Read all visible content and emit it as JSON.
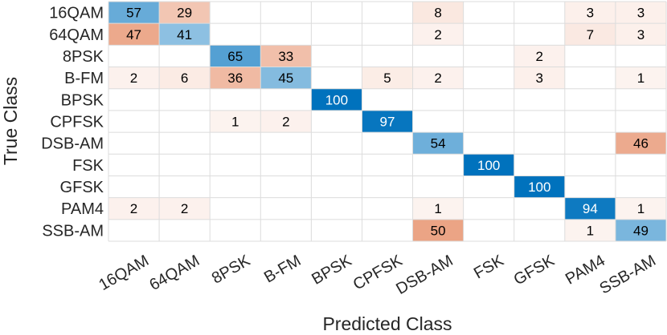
{
  "chart_data": {
    "type": "heatmap",
    "title": "",
    "xlabel": "Predicted Class",
    "ylabel": "True Class",
    "row_labels": [
      "16QAM",
      "64QAM",
      "8PSK",
      "B-FM",
      "BPSK",
      "CPFSK",
      "DSB-AM",
      "FSK",
      "GFSK",
      "PAM4",
      "SSB-AM"
    ],
    "col_labels": [
      "16QAM",
      "64QAM",
      "8PSK",
      "B-FM",
      "BPSK",
      "CPFSK",
      "DSB-AM",
      "FSK",
      "GFSK",
      "PAM4",
      "SSB-AM"
    ],
    "values": [
      [
        57,
        29,
        null,
        null,
        null,
        null,
        8,
        null,
        null,
        3,
        3
      ],
      [
        47,
        41,
        null,
        null,
        null,
        null,
        2,
        null,
        null,
        7,
        3
      ],
      [
        null,
        null,
        65,
        33,
        null,
        null,
        null,
        null,
        2,
        null,
        null
      ],
      [
        2,
        6,
        36,
        45,
        null,
        5,
        2,
        null,
        3,
        null,
        1
      ],
      [
        null,
        null,
        null,
        null,
        100,
        null,
        null,
        null,
        null,
        null,
        null
      ],
      [
        null,
        null,
        1,
        2,
        null,
        97,
        null,
        null,
        null,
        null,
        null
      ],
      [
        null,
        null,
        null,
        null,
        null,
        null,
        54,
        null,
        null,
        null,
        46
      ],
      [
        null,
        null,
        null,
        null,
        null,
        null,
        null,
        100,
        null,
        null,
        null
      ],
      [
        null,
        null,
        null,
        null,
        null,
        null,
        null,
        null,
        100,
        null,
        null
      ],
      [
        2,
        2,
        null,
        null,
        null,
        null,
        1,
        null,
        null,
        94,
        1
      ],
      [
        null,
        null,
        null,
        null,
        null,
        null,
        50,
        null,
        null,
        1,
        49
      ]
    ],
    "colors": {
      "diagonal": "#0072bd",
      "off_diagonal": "#d95319",
      "grid": "#dcdcdc",
      "text_dark": "#000000",
      "text_light": "#ffffff"
    }
  }
}
